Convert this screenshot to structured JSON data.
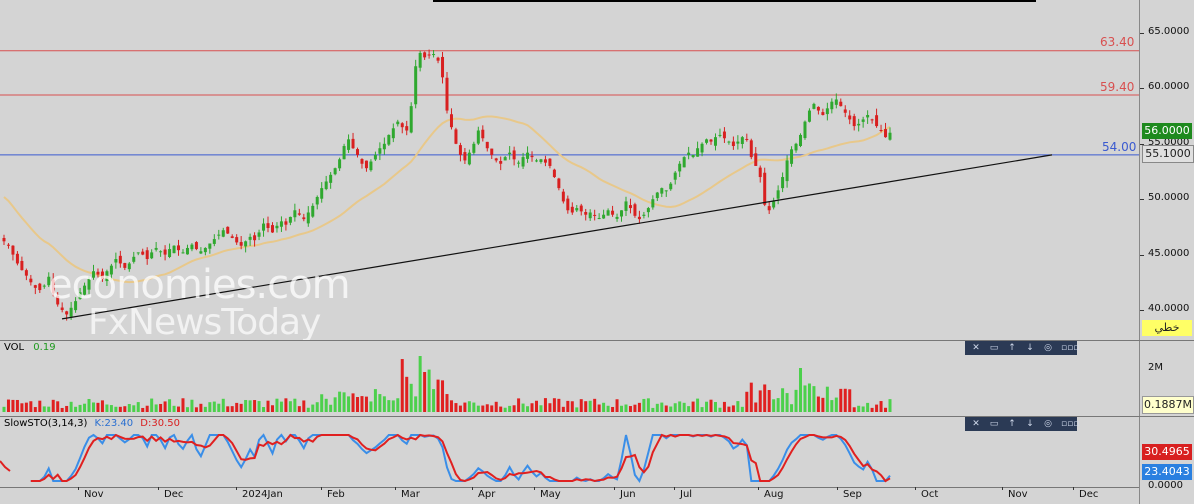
{
  "price_pane": {
    "levels": [
      {
        "value": 63.4,
        "label": "63.40",
        "color": "#d85050"
      },
      {
        "value": 59.4,
        "label": "59.40",
        "color": "#d85050"
      },
      {
        "value": 54.0,
        "label": "54.00",
        "color": "#3a5ad0"
      }
    ],
    "last_price": "56.0000",
    "ma_value": "55.1000",
    "indicator_tag": "خطي",
    "watermark_line1": "economies.com",
    "watermark_line2": "FxNewsToday"
  },
  "volume_pane": {
    "title": "VOL",
    "value": "0.19",
    "axis_label": "2M",
    "last_value": "0.1887M"
  },
  "stoch_pane": {
    "title": "SlowSTO(3,14,3)",
    "k_label": "K:23.40",
    "d_label": "D:30.50",
    "d_value": "30.4965",
    "k_value": "23.4043",
    "axis_zero": "0.0000"
  },
  "toolbar_icons": [
    "close-icon",
    "window-icon",
    "up-arrow-icon",
    "down-arrow-icon",
    "settings-icon",
    "more-icon"
  ],
  "x_labels": [
    "Nov",
    "Dec",
    "2024Jan",
    "Feb",
    "Mar",
    "Apr",
    "May",
    "Jun",
    "Jul",
    "Aug",
    "Sep",
    "Oct",
    "Nov",
    "Dec"
  ],
  "colors": {
    "up_candle": "#2fa82f",
    "down_candle": "#d82020",
    "ma_line": "#e8c88a",
    "k_line": "#3a8ee8",
    "d_line": "#e02020",
    "last_price_badge": "#1e8a1e",
    "ma_badge": "#e0e0e0",
    "tag_badge": "#ffff66"
  },
  "chart_data": {
    "type": "candlestick",
    "y_ticks": [
      "65.0000",
      "60.0000",
      "55.0000",
      "50.0000",
      "45.0000",
      "40.0000"
    ],
    "ylim": [
      38.5,
      66.5
    ],
    "trendline": {
      "from": {
        "date": "Nov 1",
        "value": 39.2
      },
      "to": {
        "date": "Oct 31",
        "value": 54.0
      }
    },
    "closes": [
      46.2,
      45.8,
      45.0,
      44.2,
      43.6,
      43.1,
      42.5,
      42.0,
      41.8,
      42.2,
      43.0,
      41.5,
      40.5,
      40.0,
      39.6,
      40.2,
      40.8,
      41.6,
      42.2,
      42.8,
      43.5,
      43.2,
      42.8,
      43.5,
      44.0,
      44.6,
      44.2,
      43.8,
      44.2,
      44.8,
      45.2,
      45.0,
      44.6,
      45.2,
      45.6,
      45.3,
      45.0,
      45.5,
      45.8,
      45.4,
      45.2,
      45.6,
      45.9,
      45.5,
      45.3,
      45.6,
      46.0,
      46.4,
      46.8,
      47.2,
      46.9,
      46.5,
      46.1,
      45.8,
      46.2,
      46.6,
      46.3,
      47.0,
      47.8,
      47.4,
      47.0,
      47.6,
      48.0,
      47.7,
      48.4,
      49.0,
      48.6,
      48.2,
      48.8,
      49.4,
      50.2,
      51.0,
      51.6,
      52.2,
      52.8,
      53.6,
      54.8,
      55.4,
      54.6,
      54.0,
      53.2,
      52.8,
      53.4,
      54.0,
      54.6,
      55.0,
      55.8,
      56.4,
      57.0,
      56.5,
      56.2,
      58.4,
      62.0,
      63.2,
      62.8,
      63.0,
      63.1,
      62.5,
      61.0,
      58.0,
      56.5,
      55.0,
      54.0,
      53.5,
      54.2,
      55.0,
      56.2,
      55.5,
      54.6,
      54.0,
      53.5,
      53.2,
      53.8,
      54.2,
      53.6,
      53.3,
      53.8,
      54.2,
      53.8,
      53.5,
      53.6,
      53.3,
      53.0,
      52.0,
      51.0,
      49.8,
      49.0,
      48.8,
      49.2,
      48.9,
      48.6,
      48.8,
      48.5,
      48.3,
      48.6,
      49.0,
      48.6,
      48.4,
      49.0,
      49.8,
      49.2,
      48.5,
      48.2,
      48.6,
      49.2,
      50.0,
      50.6,
      51.0,
      50.8,
      51.4,
      52.4,
      53.2,
      53.8,
      54.2,
      54.0,
      54.6,
      55.0,
      55.4,
      55.2,
      55.6,
      55.8,
      55.5,
      55.2,
      54.8,
      55.2,
      55.6,
      55.4,
      53.8,
      53.0,
      52.0,
      49.5,
      49.0,
      49.8,
      50.8,
      52.0,
      53.5,
      54.5,
      55.0,
      55.8,
      57.0,
      58.0,
      58.6,
      58.0,
      57.6,
      58.2,
      58.8,
      59.0,
      58.4,
      57.8,
      57.2,
      56.6,
      56.8,
      57.2,
      57.6,
      57.2,
      56.6,
      56.2,
      55.6,
      56.0
    ]
  }
}
